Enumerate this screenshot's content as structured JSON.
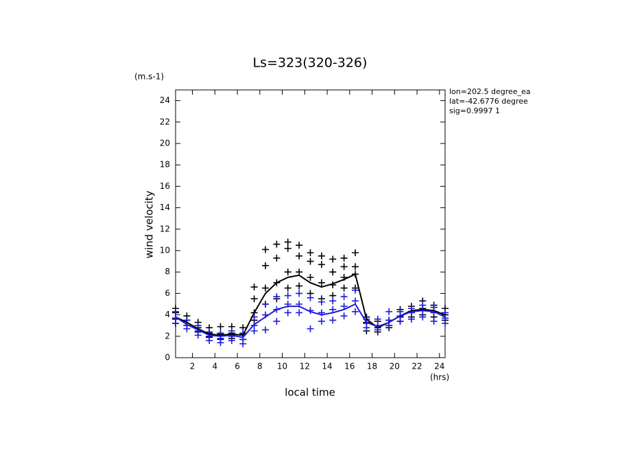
{
  "chart_data": {
    "type": "line",
    "title": "Ls=323(320-326)",
    "y_unit": "(m.s-1)",
    "y_label": "wind velocity",
    "x_label": "local time",
    "x_unit": "(hrs)",
    "annotations": [
      "lon=202.5 degree_ea",
      "lat=-42.6776 degree",
      "sig=0.9997 1"
    ],
    "xlim": [
      0.5,
      24.5
    ],
    "xticks": [
      2,
      4,
      6,
      8,
      10,
      12,
      14,
      16,
      18,
      20,
      22,
      24
    ],
    "ylim": [
      0,
      25
    ],
    "yticks": [
      0,
      2,
      4,
      6,
      8,
      10,
      12,
      14,
      16,
      18,
      20,
      22,
      24
    ],
    "grid": false,
    "series": [
      {
        "mode": "markers",
        "color": "#000000",
        "x": [
          0.5,
          0.5,
          0.5,
          0.5,
          1.5,
          1.5,
          1.5,
          2.5,
          2.5,
          2.5,
          3.5,
          3.5,
          3.5,
          4.5,
          4.5,
          4.5,
          5.5,
          5.5,
          5.5,
          6.5,
          6.5,
          6.5,
          7.5,
          7.5,
          7.5,
          7.5,
          8.5,
          8.5,
          8.5,
          8.5,
          9.5,
          9.5,
          9.5,
          9.5,
          10.5,
          10.5,
          10.5,
          10.5,
          11.5,
          11.5,
          11.5,
          11.5,
          12.5,
          12.5,
          12.5,
          12.5,
          13.5,
          13.5,
          13.5,
          13.5,
          14.5,
          14.5,
          14.5,
          14.5,
          15.5,
          15.5,
          15.5,
          15.5,
          16.5,
          16.5,
          16.5,
          16.5,
          17.5,
          17.5,
          17.5,
          18.5,
          18.5,
          18.5,
          19.5,
          19.5,
          19.5,
          20.5,
          20.5,
          20.5,
          21.5,
          21.5,
          21.5,
          22.5,
          22.5,
          22.5,
          23.5,
          23.5,
          23.5,
          24.5,
          24.5,
          24.5
        ],
        "values": [
          4.6,
          4.2,
          3.6,
          3.2,
          3.9,
          3.5,
          3.0,
          3.3,
          2.8,
          2.4,
          2.8,
          2.3,
          1.9,
          2.9,
          2.2,
          1.7,
          2.9,
          2.3,
          1.8,
          2.8,
          2.2,
          1.7,
          6.6,
          5.5,
          4.2,
          3.5,
          10.1,
          8.6,
          6.5,
          5.0,
          10.6,
          9.3,
          7.0,
          5.5,
          10.8,
          10.2,
          8.0,
          6.5,
          10.5,
          9.5,
          8.0,
          6.7,
          9.8,
          9.0,
          7.5,
          6.0,
          9.5,
          8.7,
          7.0,
          5.5,
          9.2,
          8.0,
          6.8,
          5.8,
          9.3,
          8.5,
          7.5,
          6.5,
          9.8,
          8.5,
          7.8,
          6.5,
          3.8,
          3.3,
          2.5,
          3.4,
          2.8,
          2.4,
          3.5,
          3.0,
          2.8,
          4.5,
          3.8,
          3.4,
          4.8,
          4.3,
          3.8,
          5.3,
          4.6,
          4.0,
          4.9,
          4.3,
          3.8,
          4.6,
          4.0,
          3.5
        ]
      },
      {
        "mode": "markers",
        "color": "#1a1adc",
        "x": [
          0.5,
          0.5,
          0.5,
          1.5,
          1.5,
          1.5,
          2.5,
          2.5,
          2.5,
          3.5,
          3.5,
          3.5,
          4.5,
          4.5,
          4.5,
          5.5,
          5.5,
          5.5,
          6.5,
          6.5,
          6.5,
          7.5,
          7.5,
          7.5,
          8.5,
          8.5,
          8.5,
          9.5,
          9.5,
          9.5,
          10.5,
          10.5,
          10.5,
          11.5,
          11.5,
          11.5,
          12.5,
          12.5,
          12.5,
          13.5,
          13.5,
          13.5,
          14.5,
          14.5,
          14.5,
          15.5,
          15.5,
          15.5,
          16.5,
          16.5,
          16.5,
          17.5,
          17.5,
          17.5,
          18.5,
          18.5,
          18.5,
          19.5,
          19.5,
          19.5,
          20.5,
          20.5,
          20.5,
          21.5,
          21.5,
          21.5,
          22.5,
          22.5,
          22.5,
          23.5,
          23.5,
          23.5,
          24.5,
          24.5,
          24.5
        ],
        "values": [
          4.3,
          3.7,
          3.2,
          3.5,
          3.0,
          2.7,
          3.0,
          2.5,
          2.1,
          2.4,
          2.0,
          1.6,
          2.3,
          1.8,
          1.4,
          2.5,
          2.0,
          1.6,
          2.3,
          1.7,
          1.3,
          3.8,
          3.0,
          2.5,
          5.0,
          4.0,
          2.6,
          5.7,
          4.5,
          3.4,
          5.8,
          5.0,
          4.2,
          6.0,
          5.0,
          4.2,
          5.6,
          4.4,
          2.7,
          5.2,
          4.2,
          3.4,
          5.3,
          4.5,
          3.5,
          5.7,
          4.8,
          3.9,
          6.3,
          5.3,
          4.3,
          3.6,
          3.2,
          2.8,
          3.6,
          3.0,
          2.6,
          4.3,
          3.5,
          3.0,
          4.3,
          3.9,
          3.4,
          4.6,
          4.2,
          3.6,
          4.9,
          4.4,
          3.8,
          4.7,
          4.2,
          3.4,
          4.2,
          3.7,
          3.2
        ]
      },
      {
        "mode": "lines",
        "color": "#000000",
        "x": [
          0.5,
          1.5,
          2.5,
          3.5,
          4.5,
          5.5,
          6.5,
          7.5,
          8.5,
          9.5,
          10.5,
          11.5,
          12.5,
          13.5,
          14.5,
          15.5,
          16.5,
          17.5,
          18.5,
          19.5,
          20.5,
          21.5,
          22.5,
          23.5,
          24.5
        ],
        "values": [
          3.8,
          3.3,
          2.7,
          2.2,
          2.1,
          2.2,
          2.1,
          4.2,
          6.0,
          7.0,
          7.5,
          7.7,
          7.0,
          6.6,
          6.9,
          7.3,
          7.8,
          3.6,
          2.8,
          3.3,
          3.9,
          4.4,
          4.5,
          4.4,
          4.0
        ]
      },
      {
        "mode": "lines",
        "color": "#1a1adc",
        "x": [
          0.5,
          1.5,
          2.5,
          3.5,
          4.5,
          5.5,
          6.5,
          7.5,
          8.5,
          9.5,
          10.5,
          11.5,
          12.5,
          13.5,
          14.5,
          15.5,
          16.5,
          17.5,
          18.5,
          19.5,
          20.5,
          21.5,
          22.5,
          23.5,
          24.5
        ],
        "values": [
          3.8,
          3.1,
          2.6,
          2.1,
          2.0,
          2.1,
          1.9,
          3.1,
          3.8,
          4.5,
          4.8,
          4.8,
          4.3,
          4.0,
          4.2,
          4.5,
          5.0,
          3.3,
          2.9,
          3.3,
          3.9,
          4.3,
          4.4,
          4.3,
          3.8
        ]
      }
    ]
  }
}
